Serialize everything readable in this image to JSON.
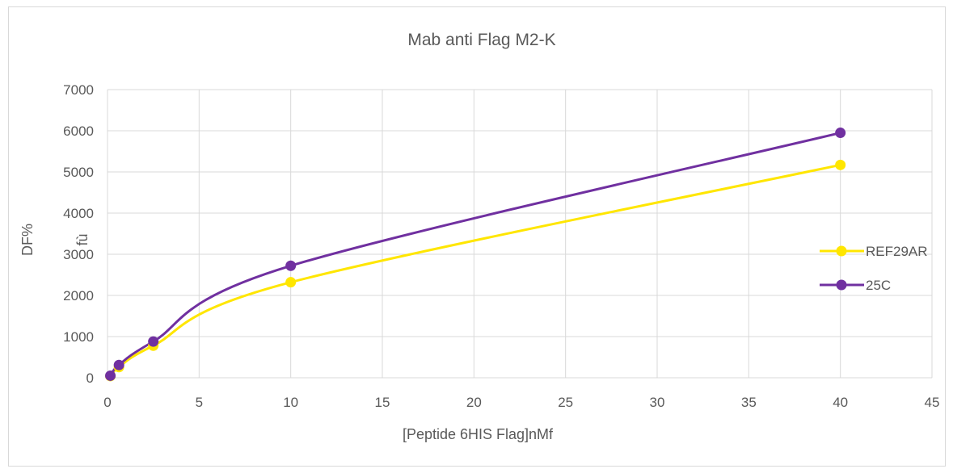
{
  "chart_data": {
    "type": "line",
    "title": "Mab anti Flag M2-K",
    "xlabel": "[Peptide 6HIS Flag]nMf",
    "ylabel": "DF%",
    "ylabel_secondary": "fù",
    "xlim": [
      0,
      45
    ],
    "ylim": [
      0,
      7000
    ],
    "xticks": [
      0,
      5,
      10,
      15,
      20,
      25,
      30,
      35,
      40,
      45
    ],
    "yticks": [
      0,
      1000,
      2000,
      3000,
      4000,
      5000,
      6000,
      7000
    ],
    "grid": true,
    "legend_position": "right",
    "smooth": true,
    "series": [
      {
        "name": "REF29AR",
        "color": "#ffe600",
        "x": [
          0.156,
          0.625,
          2.5,
          10,
          40
        ],
        "y": [
          40,
          260,
          780,
          2320,
          5170
        ]
      },
      {
        "name": "25C",
        "color": "#7030a0",
        "x": [
          0.156,
          0.625,
          2.5,
          10,
          40
        ],
        "y": [
          50,
          310,
          880,
          2720,
          5950
        ]
      }
    ]
  }
}
